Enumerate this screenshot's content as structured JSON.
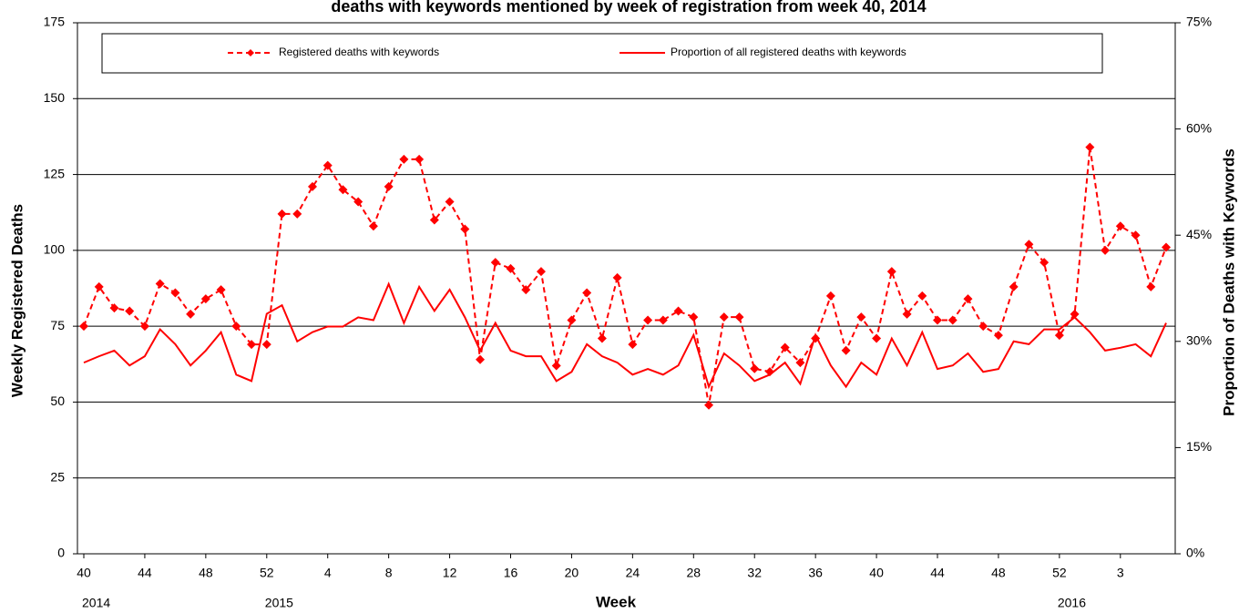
{
  "chart_data": {
    "type": "line",
    "title": "deaths with keywords mentioned by week of registration from week 40, 2014",
    "x_label": "Week",
    "y_label": "Weekly Registered Deaths",
    "y2_label": "Proportion of Deaths with Keywords",
    "categories": [
      "40",
      null,
      null,
      null,
      "44",
      null,
      null,
      null,
      "48",
      null,
      null,
      null,
      "52",
      null,
      null,
      null,
      "4",
      null,
      null,
      null,
      "8",
      null,
      null,
      null,
      "12",
      null,
      null,
      null,
      "16",
      null,
      null,
      null,
      "20",
      null,
      null,
      null,
      "24",
      null,
      null,
      null,
      "28",
      null,
      null,
      null,
      "32",
      null,
      null,
      null,
      "36",
      null,
      null,
      null,
      "40",
      null,
      null,
      null,
      "44",
      null,
      null,
      null,
      "48",
      null,
      null,
      null,
      "52",
      null,
      null,
      null,
      "3",
      null,
      null,
      null
    ],
    "year_labels": [
      "2014",
      "2015",
      "2016"
    ],
    "series": [
      {
        "name": "Registered deaths with keywords",
        "color": "#ff0000",
        "dashed": true,
        "marker": "diamond",
        "values": [
          75,
          88,
          81,
          80,
          75,
          89,
          86,
          79,
          84,
          87,
          75,
          69,
          69,
          112,
          112,
          121,
          128,
          120,
          116,
          108,
          121,
          130,
          130,
          110,
          116,
          107,
          64,
          96,
          94,
          87,
          93,
          62,
          77,
          86,
          71,
          91,
          69,
          77,
          77,
          80,
          78,
          49,
          78,
          78,
          61,
          60,
          68,
          63,
          71,
          85,
          67,
          78,
          71,
          93,
          79,
          85,
          77,
          77,
          84,
          75,
          72,
          88,
          102,
          96,
          72,
          79,
          134,
          100,
          108,
          105,
          88,
          101
        ]
      },
      {
        "name": "Proportion of all registered deaths with keywords",
        "color": "#ff0000",
        "dashed": false,
        "axis": "y2",
        "values": [
          27.0,
          27.9,
          28.7,
          26.6,
          27.9,
          31.7,
          29.6,
          26.6,
          28.7,
          31.3,
          25.3,
          24.4,
          33.9,
          35.1,
          30.0,
          31.3,
          32.1,
          32.1,
          33.4,
          33.0,
          38.1,
          32.6,
          37.7,
          34.3,
          37.3,
          33.4,
          28.7,
          32.6,
          28.7,
          27.9,
          27.9,
          24.4,
          25.7,
          29.6,
          27.9,
          27.0,
          25.3,
          26.1,
          25.3,
          26.6,
          30.9,
          23.6,
          28.3,
          26.6,
          24.4,
          25.3,
          27.0,
          24.0,
          30.9,
          26.6,
          23.6,
          27.0,
          25.3,
          30.4,
          26.6,
          31.3,
          26.1,
          26.6,
          28.3,
          25.7,
          26.1,
          30.0,
          29.6,
          31.7,
          31.7,
          33.4,
          31.3,
          28.7,
          29.1,
          29.6,
          27.9,
          32.6
        ]
      }
    ],
    "ylim": [
      0,
      175
    ],
    "yticks": [
      0,
      25,
      50,
      75,
      100,
      125,
      150,
      175
    ],
    "y2lim": [
      0,
      75
    ],
    "y2ticks": [
      {
        "value": 0,
        "label": "0%"
      },
      {
        "value": 15,
        "label": "15%"
      },
      {
        "value": 30,
        "label": "30%"
      },
      {
        "value": 45,
        "label": "45%"
      },
      {
        "value": 60,
        "label": "60%"
      },
      {
        "value": 75,
        "label": "75%"
      }
    ],
    "grid": true,
    "legend": "top"
  }
}
